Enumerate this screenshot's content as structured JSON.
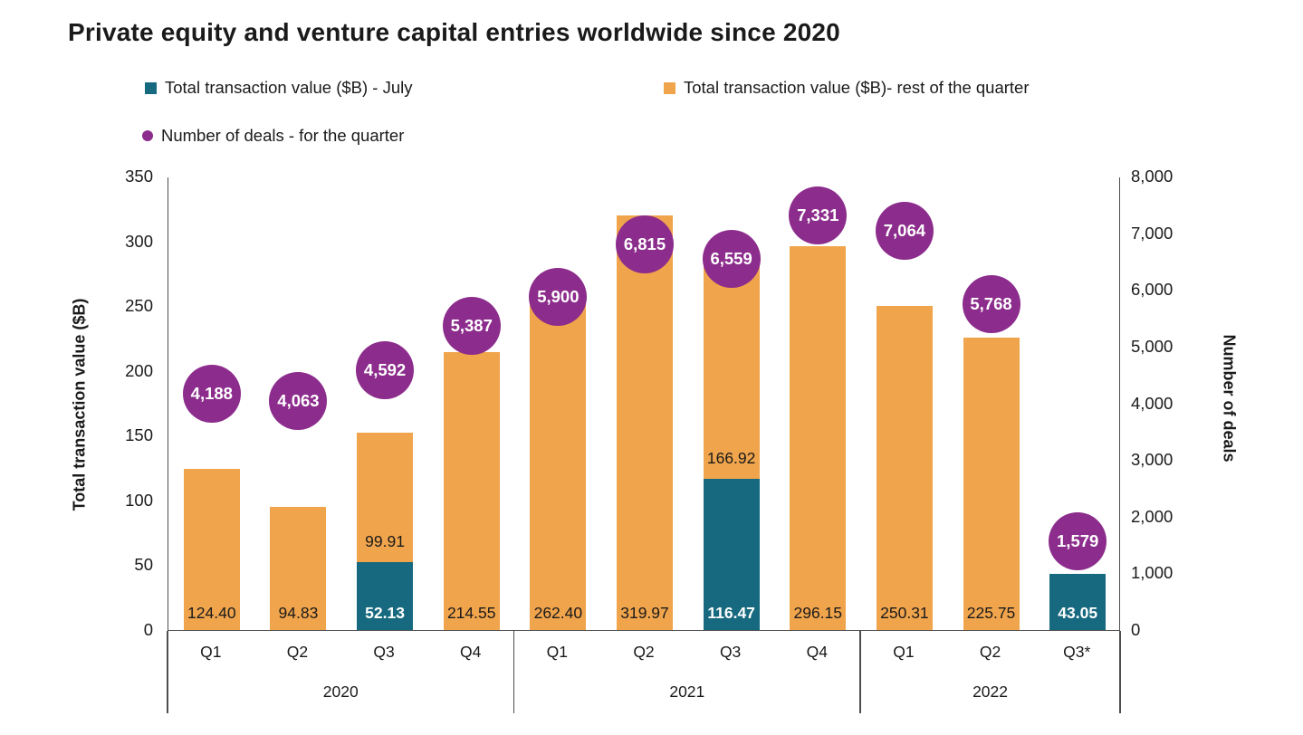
{
  "chart_data": {
    "type": "bar",
    "title": "Private equity and venture capital entries worldwide since 2020",
    "categories": [
      "Q1",
      "Q2",
      "Q3",
      "Q4",
      "Q1",
      "Q2",
      "Q3",
      "Q4",
      "Q1",
      "Q2",
      "Q3*"
    ],
    "groups": [
      {
        "label": "2020",
        "count": 4
      },
      {
        "label": "2021",
        "count": 4
      },
      {
        "label": "2022",
        "count": 3
      }
    ],
    "left_axis": {
      "label": "Total transaction value ($B)",
      "min": 0,
      "max": 350,
      "step": 50
    },
    "right_axis": {
      "label": "Number of deals",
      "min": 0,
      "max": 8000,
      "step": 1000
    },
    "grid": "off",
    "series": [
      {
        "name": "Total transaction value ($B) - July",
        "type": "bar-stack",
        "axis": "left",
        "color": "#16697e",
        "values": [
          null,
          null,
          52.13,
          null,
          null,
          null,
          116.47,
          null,
          null,
          null,
          43.05
        ]
      },
      {
        "name": "Total transaction value ($B)- rest of the quarter",
        "type": "bar-stack",
        "axis": "left",
        "color": "#f0a44c",
        "values": [
          124.4,
          94.83,
          99.91,
          214.55,
          262.4,
          319.97,
          166.92,
          296.15,
          250.31,
          225.75,
          null
        ]
      },
      {
        "name": "Number of deals - for the quarter",
        "type": "bubble",
        "axis": "right",
        "color": "#8c2c8c",
        "values": [
          4188,
          4063,
          4592,
          5387,
          5900,
          6815,
          6559,
          7331,
          7064,
          5768,
          1579
        ]
      }
    ]
  },
  "legend": {
    "items": [
      {
        "label": "Total transaction value ($B) - July",
        "marker": "square",
        "color": "#16697e"
      },
      {
        "label": "Total transaction value ($B)- rest of the quarter",
        "marker": "square",
        "color": "#f0a44c"
      },
      {
        "label": "Number of deals - for the quarter",
        "marker": "circle",
        "color": "#8c2c8c"
      }
    ]
  }
}
